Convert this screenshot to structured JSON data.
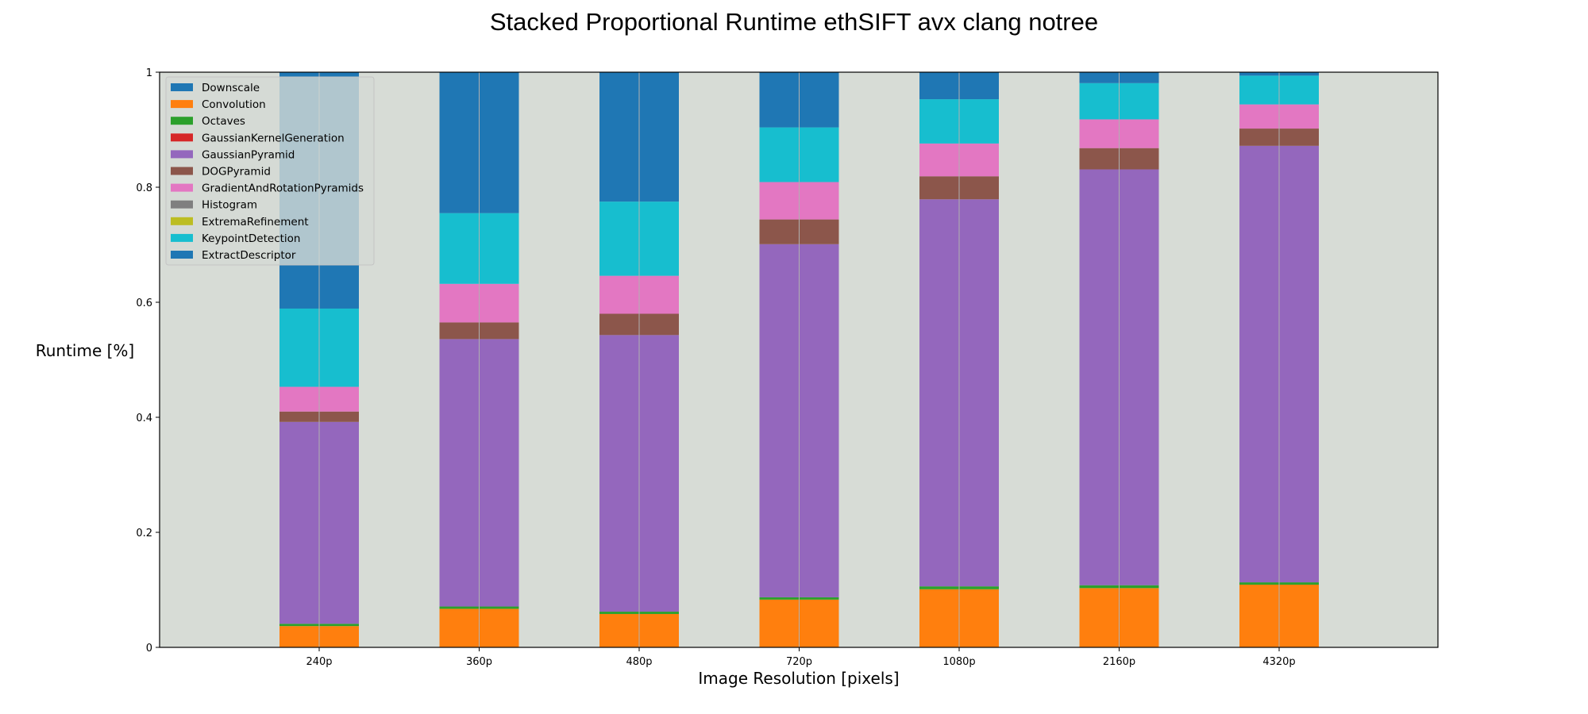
{
  "chart_data": {
    "type": "bar",
    "stacked": true,
    "title": "Stacked Proportional Runtime ethSIFT avx clang notree",
    "xlabel": "Image Resolution [pixels]",
    "ylabel": "Runtime [%]",
    "ylim": [
      0,
      1
    ],
    "yticks": [
      0,
      0.2,
      0.4,
      0.6,
      0.8,
      1
    ],
    "ytick_labels": [
      "0",
      "0.2",
      "0.4",
      "0.6",
      "0.8",
      "1"
    ],
    "categories": [
      "240p",
      "360p",
      "480p",
      "720p",
      "1080p",
      "2160p",
      "4320p"
    ],
    "grid": "vertical lines at category centers",
    "legend_position": "top-left",
    "background_color": "#d7dcd6",
    "series": [
      {
        "name": "Downscale",
        "color": "#1f77b4",
        "values": [
          0.0,
          0.0,
          0.0,
          0.0,
          0.0,
          0.0,
          0.0
        ]
      },
      {
        "name": "Convolution",
        "color": "#ff7f0e",
        "values": [
          0.037,
          0.067,
          0.058,
          0.083,
          0.101,
          0.103,
          0.109
        ]
      },
      {
        "name": "Octaves",
        "color": "#2ca02c",
        "values": [
          0.004,
          0.004,
          0.004,
          0.004,
          0.005,
          0.005,
          0.004
        ]
      },
      {
        "name": "GaussianKernelGeneration",
        "color": "#d62728",
        "values": [
          0.0,
          0.0,
          0.0,
          0.0,
          0.0,
          0.0,
          0.0
        ]
      },
      {
        "name": "GaussianPyramid",
        "color": "#9467bd",
        "values": [
          0.351,
          0.465,
          0.481,
          0.614,
          0.673,
          0.723,
          0.759
        ]
      },
      {
        "name": "DOGPyramid",
        "color": "#8c564b",
        "values": [
          0.018,
          0.029,
          0.037,
          0.043,
          0.04,
          0.037,
          0.03
        ]
      },
      {
        "name": "GradientAndRotationPyramids",
        "color": "#e377c2",
        "values": [
          0.043,
          0.067,
          0.066,
          0.065,
          0.057,
          0.05,
          0.042
        ]
      },
      {
        "name": "Histogram",
        "color": "#7f7f7f",
        "values": [
          0.0,
          0.0,
          0.0,
          0.0,
          0.0,
          0.0,
          0.0
        ]
      },
      {
        "name": "ExtremaRefinement",
        "color": "#bcbd22",
        "values": [
          0.0,
          0.0,
          0.0,
          0.0,
          0.0,
          0.0,
          0.0
        ]
      },
      {
        "name": "KeypointDetection",
        "color": "#17becf",
        "values": [
          0.136,
          0.123,
          0.129,
          0.095,
          0.077,
          0.063,
          0.05
        ]
      },
      {
        "name": "ExtractDescriptor",
        "color": "#1f77b4",
        "values": [
          0.411,
          0.245,
          0.225,
          0.096,
          0.047,
          0.019,
          0.006
        ]
      }
    ]
  }
}
